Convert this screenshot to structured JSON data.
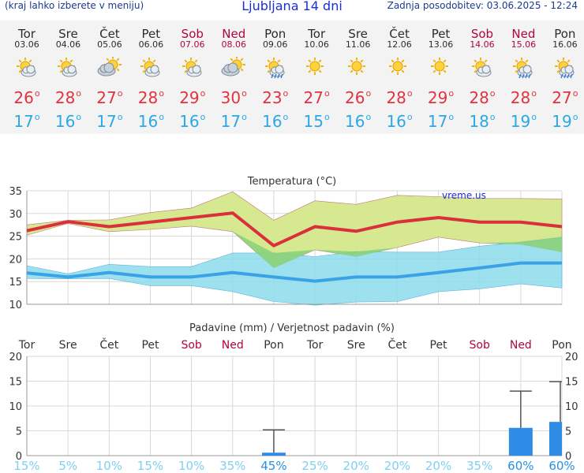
{
  "header": {
    "menu_hint": "(kraj lahko izberete v meniju)",
    "title": "Ljubljana 14 dni",
    "last_update": "Zadnja posodobitev: 03.06.2025 - 12:24"
  },
  "days": [
    {
      "name": "Tor",
      "date": "03.06",
      "weekend": false,
      "icon": "sun-cloud-icon",
      "tmax": "26",
      "tmin": "17"
    },
    {
      "name": "Sre",
      "date": "04.06",
      "weekend": false,
      "icon": "sun-cloud-icon",
      "tmax": "28",
      "tmin": "16"
    },
    {
      "name": "Čet",
      "date": "05.06",
      "weekend": false,
      "icon": "cloudy-sun-icon",
      "tmax": "27",
      "tmin": "17"
    },
    {
      "name": "Pet",
      "date": "06.06",
      "weekend": false,
      "icon": "sun-cloud-icon",
      "tmax": "28",
      "tmin": "16"
    },
    {
      "name": "Sob",
      "date": "07.06",
      "weekend": true,
      "icon": "sun-cloud-icon",
      "tmax": "29",
      "tmin": "16"
    },
    {
      "name": "Ned",
      "date": "08.06",
      "weekend": true,
      "icon": "cloudy-sun-icon",
      "tmax": "30",
      "tmin": "17"
    },
    {
      "name": "Pon",
      "date": "09.06",
      "weekend": false,
      "icon": "sun-rain-icon",
      "tmax": "23",
      "tmin": "16"
    },
    {
      "name": "Tor",
      "date": "10.06",
      "weekend": false,
      "icon": "sun-icon",
      "tmax": "27",
      "tmin": "15"
    },
    {
      "name": "Sre",
      "date": "11.06",
      "weekend": false,
      "icon": "sun-icon",
      "tmax": "26",
      "tmin": "16"
    },
    {
      "name": "Čet",
      "date": "12.06",
      "weekend": false,
      "icon": "sun-icon",
      "tmax": "28",
      "tmin": "16"
    },
    {
      "name": "Pet",
      "date": "13.06",
      "weekend": false,
      "icon": "sun-icon",
      "tmax": "29",
      "tmin": "17"
    },
    {
      "name": "Sob",
      "date": "14.06",
      "weekend": true,
      "icon": "sun-cloud-icon",
      "tmax": "28",
      "tmin": "18"
    },
    {
      "name": "Ned",
      "date": "15.06",
      "weekend": true,
      "icon": "sun-rain-icon",
      "tmax": "28",
      "tmin": "19"
    },
    {
      "name": "Pon",
      "date": "16.06",
      "weekend": false,
      "icon": "sun-rain-icon",
      "tmax": "27",
      "tmin": "19"
    }
  ],
  "colors": {
    "weekday_label": "#333333",
    "weekend_label": "#b0063b",
    "tmax": "#e0333f",
    "tmin": "#2aa8e8",
    "max_band": "#d4e88c",
    "min_band": "#8ddcec",
    "overlap": "#8cd27a",
    "max_line": "#d9303c",
    "min_line": "#3aa2e6",
    "precip_bar": "#2e8be6",
    "prob_low": "#7ed0f2",
    "prob_high": "#2a8fe0"
  },
  "chart_data": [
    {
      "type": "area",
      "title": "Temperatura (°C)",
      "watermark": "vreme.us",
      "categories": [
        "Tor",
        "Sre",
        "Čet",
        "Pet",
        "Sob",
        "Ned",
        "Pon",
        "Tor",
        "Sre",
        "Čet",
        "Pet",
        "Sob",
        "Ned",
        "Pon"
      ],
      "ylim": [
        10,
        35
      ],
      "yticks": [
        10,
        15,
        20,
        25,
        30,
        35
      ],
      "series": [
        {
          "role": "max",
          "values": [
            26.2,
            28.2,
            27.1,
            28.1,
            29.1,
            30.1,
            22.9,
            27.1,
            26.1,
            28.1,
            29.1,
            28.1,
            28.1,
            27.1
          ]
        },
        {
          "role": "max-upper",
          "values": [
            27.5,
            28.5,
            28.6,
            30.2,
            31.2,
            34.8,
            28.5,
            32.8,
            32.0,
            34.0,
            33.7,
            33.3,
            33.3,
            33.2
          ]
        },
        {
          "role": "max-lower",
          "values": [
            25.2,
            27.8,
            26.0,
            26.5,
            27.2,
            26.0,
            18.0,
            22.0,
            20.5,
            22.5,
            24.8,
            23.5,
            23.2,
            21.5
          ]
        },
        {
          "role": "min",
          "values": [
            16.9,
            16.0,
            17.0,
            16.0,
            16.0,
            17.0,
            16.0,
            15.1,
            16.0,
            16.0,
            17.0,
            18.0,
            19.1,
            19.1
          ]
        },
        {
          "role": "min-upper",
          "values": [
            18.5,
            16.7,
            18.8,
            18.3,
            18.3,
            21.3,
            21.3,
            20.5,
            21.6,
            21.5,
            21.5,
            22.8,
            23.7,
            24.8
          ]
        },
        {
          "role": "min-lower",
          "values": [
            15.7,
            15.6,
            15.7,
            14.1,
            14.1,
            12.8,
            10.6,
            9.8,
            10.5,
            10.6,
            12.8,
            13.4,
            14.5,
            13.6
          ]
        }
      ]
    },
    {
      "type": "bar",
      "title": "Padavine (mm) / Verjetnost padavin (%)",
      "categories": [
        "Tor",
        "Sre",
        "Čet",
        "Pet",
        "Sob",
        "Ned",
        "Pon",
        "Tor",
        "Sre",
        "Čet",
        "Pet",
        "Sob",
        "Ned",
        "Pon"
      ],
      "ylim": [
        0,
        20
      ],
      "yticks": [
        0,
        5,
        10,
        15,
        20
      ],
      "precip_mm": [
        0,
        0,
        0,
        0,
        0,
        0,
        0.6,
        0,
        0,
        0,
        0,
        0,
        5.6,
        6.8
      ],
      "precip_max_mm": [
        0,
        0,
        0,
        0,
        0,
        0,
        5.2,
        0,
        0,
        0,
        0,
        0,
        13.0,
        14.9
      ],
      "probability": [
        "15%",
        "5%",
        "10%",
        "15%",
        "10%",
        "35%",
        "45%",
        "25%",
        "20%",
        "20%",
        "20%",
        "35%",
        "60%",
        "60%"
      ],
      "probability_strong": [
        false,
        false,
        false,
        false,
        false,
        false,
        true,
        false,
        false,
        false,
        false,
        false,
        true,
        true
      ]
    }
  ]
}
